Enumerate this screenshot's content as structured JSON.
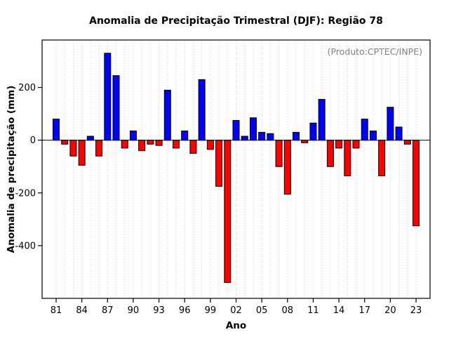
{
  "page": {
    "background": "#ffffff"
  },
  "chart_data": {
    "type": "bar",
    "title": "Anomalia de Precipitação Trimestral (DJF): Região 78",
    "xlabel": "Ano",
    "ylabel": "Anomalia de precipitação (mm)",
    "annotation": "(Produto:CPTEC/INPE)",
    "categories": [
      "81",
      "82",
      "83",
      "84",
      "85",
      "86",
      "87",
      "88",
      "89",
      "90",
      "91",
      "92",
      "93",
      "94",
      "95",
      "96",
      "97",
      "98",
      "99",
      "00",
      "01",
      "02",
      "03",
      "04",
      "05",
      "06",
      "07",
      "08",
      "09",
      "10",
      "11",
      "12",
      "13",
      "14",
      "15",
      "16",
      "17",
      "18",
      "19",
      "20",
      "21",
      "22",
      "23"
    ],
    "values": [
      80,
      -15,
      -60,
      -95,
      15,
      -60,
      330,
      245,
      -30,
      35,
      -40,
      -15,
      -20,
      190,
      -30,
      35,
      -50,
      230,
      -35,
      -175,
      -540,
      75,
      15,
      85,
      30,
      25,
      -100,
      -205,
      30,
      -10,
      65,
      155,
      -100,
      -30,
      -135,
      -30,
      80,
      35,
      -135,
      125,
      50,
      -15,
      -325
    ],
    "ylim": [
      -600,
      380
    ],
    "yticks": [
      200,
      0,
      -200,
      -400
    ],
    "xtick_labels": [
      "81",
      "84",
      "87",
      "90",
      "93",
      "96",
      "99",
      "02",
      "05",
      "08",
      "11",
      "14",
      "17",
      "20",
      "23"
    ],
    "positive_color": "#0000ff",
    "negative_color": "#ff0000",
    "axis_color": "#000000",
    "grid": "dotted-vertical-per-year",
    "grid_color": "#cccccc",
    "legend": "none"
  }
}
